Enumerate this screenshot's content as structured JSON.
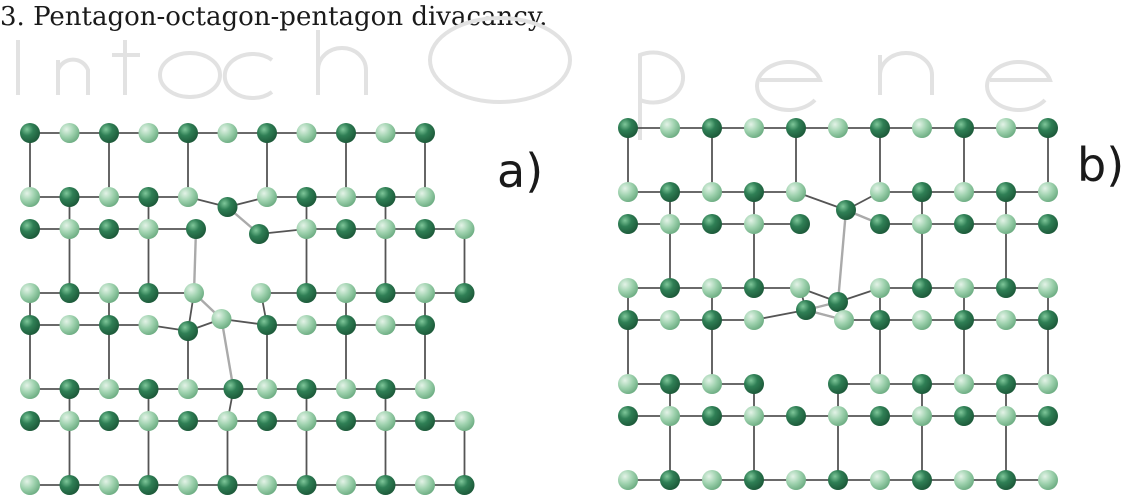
{
  "caption": "3. Pentagon-octagon-pentagon divacancy.",
  "panels": [
    {
      "id": "a",
      "label": "a)"
    },
    {
      "id": "b",
      "label": "b)"
    }
  ],
  "colors": {
    "atom_dark": "#2f7f55",
    "atom_dark_hi": "#7fc79a",
    "atom_light": "#9dd1ad",
    "atom_light_hi": "#e3f3e7",
    "bond": "#555555",
    "defect_bond": "#aaaaaa",
    "watermark": "#d4d4d4"
  }
}
